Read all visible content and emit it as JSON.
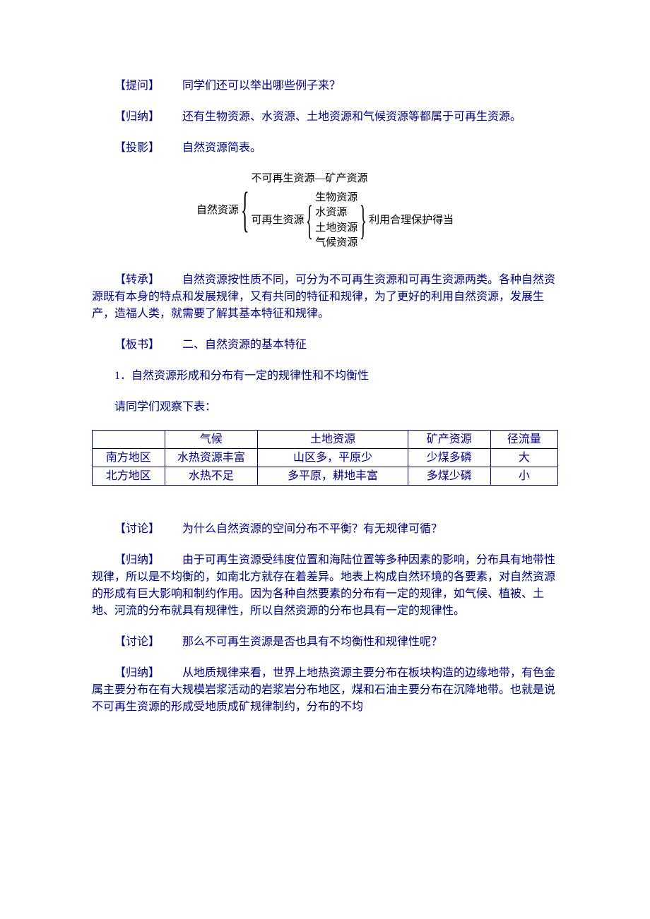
{
  "colors": {
    "text": "#000080",
    "border": "#000080",
    "bg": "#ffffff",
    "diagram_text": "#000000"
  },
  "typography": {
    "body_fontsize": 16,
    "diagram_fontsize": 15,
    "line_height": 1.5,
    "font_family": "SimSun"
  },
  "labels": {
    "tiwen": "【提问】",
    "guina": "【归纳】",
    "touying": "【投影】",
    "zhuancheng": "【转承】",
    "banshu": "【板书】",
    "taolun": "【讨论】"
  },
  "p1": "同学们还可以举出哪些例子来？",
  "p2": "还有生物资源、水资源、土地资源和气候资源等都属于可再生资源。",
  "p3": "自然资源简表。",
  "diagram": {
    "root": "自然资源",
    "branch1": "不可再生资源—矿产资源",
    "branch2_label": "可再生资源",
    "branch2_items": [
      "生物资源",
      "水资源",
      "土地资源",
      "气候资源"
    ],
    "branch2_note": "利用合理保护得当"
  },
  "p4": "自然资源按性质不同，可分为不可再生资源和可再生资源两类。各种自然资源既有本身的特点和发展规律，又有共同的特征和规律，为了更好的利用自然资源，发展生产，造福人类，就需要了解其基本特征和规律。",
  "p5": "二、自然资源的基本特征",
  "p6": "1．自然资源形成和分布有一定的规律性和不均衡性",
  "p7": "请同学们观察下表：",
  "table": {
    "headers": [
      "",
      "气候",
      "土地资源",
      "矿产资源",
      "径流量"
    ],
    "rows": [
      [
        "南方地区",
        "水热资源丰富",
        "山区多，平原少",
        "少煤多磷",
        "大"
      ],
      [
        "北方地区",
        "水热不足",
        "多平原，耕地丰富",
        "多煤少磷",
        "小"
      ]
    ]
  },
  "p8": "为什么自然资源的空间分布不平衡？有无规律可循？",
  "p9": "由于可再生资源受纬度位置和海陆位置等多种因素的影响，分布具有地带性规律，所以是不均衡的，如南北方就存在着差异。地表上构成自然环境的各要素，对自然资源的形成有巨大影响和制约作用。因为各种自然要素的分布有一定的规律，如气候、植被、土地、河流的分布就具有规律性，所以自然资源的分布也具有一定的规律性。",
  "p10": "那么不可再生资源是否也具有不均衡性和规律性呢？",
  "p11": "从地质规律来看，世界上地热资源主要分布在板块构造的边缘地带，有色金属主要分布在有大规模岩浆活动的岩浆岩分布地区，煤和石油主要分布在沉降地带。也就是说不可再生资源的形成受地质成矿规律制约，分布的不均"
}
